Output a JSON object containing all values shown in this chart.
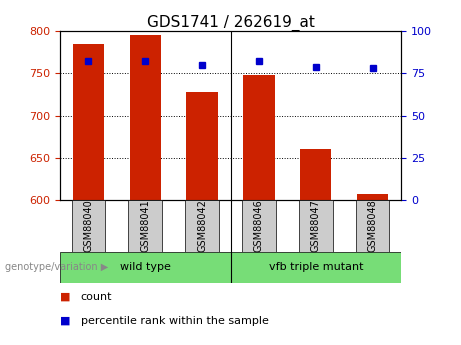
{
  "title": "GDS1741 / 262619_at",
  "categories": [
    "GSM88040",
    "GSM88041",
    "GSM88042",
    "GSM88046",
    "GSM88047",
    "GSM88048"
  ],
  "count_values": [
    785,
    795,
    728,
    748,
    660,
    607
  ],
  "percentile_values": [
    82,
    82,
    80,
    82,
    79,
    78
  ],
  "ylim_left": [
    600,
    800
  ],
  "ylim_right": [
    0,
    100
  ],
  "yticks_left": [
    600,
    650,
    700,
    750,
    800
  ],
  "yticks_right": [
    0,
    25,
    50,
    75,
    100
  ],
  "bar_color": "#cc2200",
  "dot_color": "#0000cc",
  "bg_plot": "#ffffff",
  "bg_xticklabels": "#cccccc",
  "bg_group": "#77dd77",
  "group_labels": [
    "wild type",
    "vfb triple mutant"
  ],
  "group_split": 2.5,
  "legend_count_label": "count",
  "legend_pct_label": "percentile rank within the sample",
  "genotype_label": "genotype/variation",
  "bar_width": 0.55,
  "left_tick_color": "#cc2200",
  "right_tick_color": "#0000cc",
  "title_fontsize": 11,
  "tick_fontsize": 8,
  "group_fontsize": 8,
  "legend_fontsize": 8,
  "cat_fontsize": 7
}
